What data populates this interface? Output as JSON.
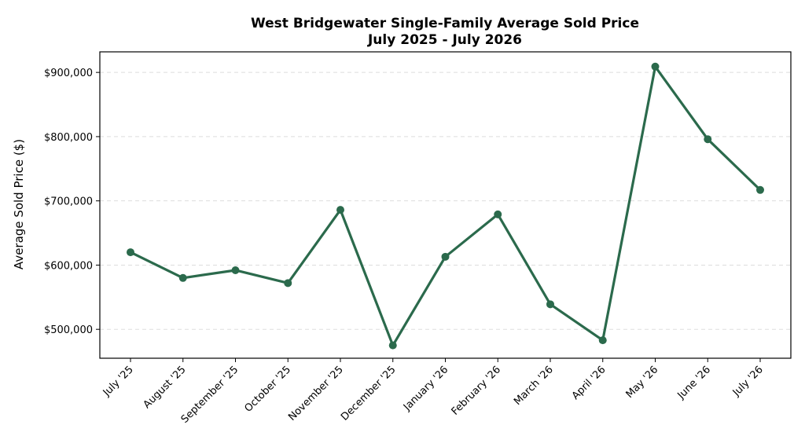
{
  "chart_data": {
    "type": "line",
    "title": "West Bridgewater Single-Family Average Sold Price",
    "subtitle": "July 2025 - July 2026",
    "xlabel": "",
    "ylabel": "Average Sold Price ($)",
    "categories": [
      "July '25",
      "August '25",
      "September '25",
      "October '25",
      "November '25",
      "December '25",
      "January '26",
      "February '26",
      "March '26",
      "April '26",
      "May '26",
      "June '26",
      "July '26"
    ],
    "series": [
      {
        "values": [
          620000,
          580000,
          592000,
          572000,
          686000,
          475000,
          613000,
          679000,
          539000,
          483000,
          909000,
          796000,
          717000
        ]
      }
    ],
    "ylim": [
      455000,
      932000
    ],
    "yticks": [
      500000,
      600000,
      700000,
      800000,
      900000
    ],
    "ytick_labels": [
      "$500,000",
      "$600,000",
      "$700,000",
      "$800,000",
      "$900,000"
    ],
    "grid": "y-dashed",
    "legend": "none",
    "line_color": "#2b6a4c",
    "grid_color": "#dddddd"
  }
}
